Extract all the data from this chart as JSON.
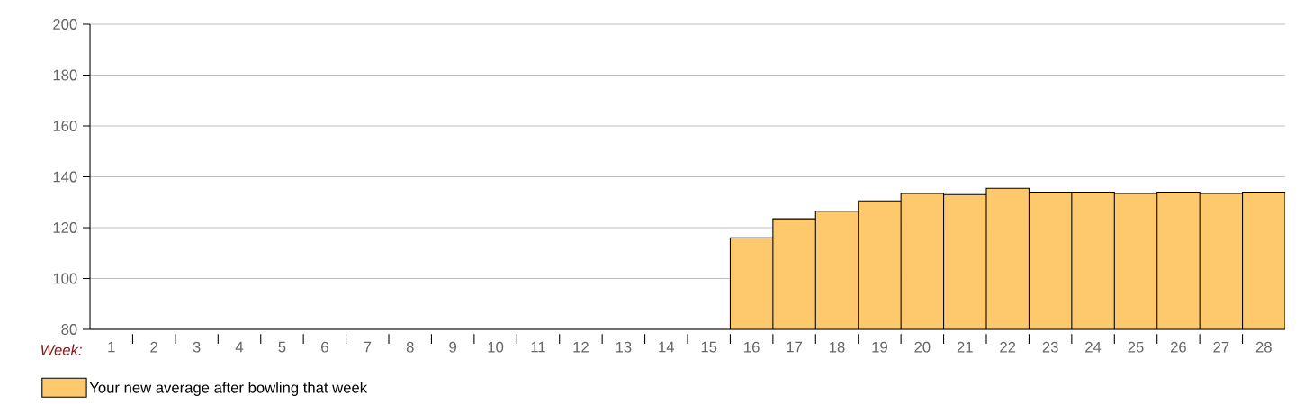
{
  "chart_data": {
    "type": "bar",
    "xlabel": "Week:",
    "categories": [
      "1",
      "2",
      "3",
      "4",
      "5",
      "6",
      "7",
      "8",
      "9",
      "10",
      "11",
      "12",
      "13",
      "14",
      "15",
      "16",
      "17",
      "18",
      "19",
      "20",
      "21",
      "22",
      "23",
      "24",
      "25",
      "26",
      "27",
      "28"
    ],
    "series": [
      {
        "name": "Your new average after bowling that week",
        "color": "#fec96c",
        "values": [
          null,
          null,
          null,
          null,
          null,
          null,
          null,
          null,
          null,
          null,
          null,
          null,
          null,
          null,
          null,
          116,
          123.5,
          126.5,
          130.5,
          133.5,
          133,
          135.5,
          134,
          134,
          133.5,
          134,
          133.5,
          134
        ]
      }
    ],
    "ylim": [
      80,
      200
    ],
    "yticks": [
      80,
      100,
      120,
      140,
      160,
      180,
      200
    ],
    "grid": "y",
    "legend": "bottom left"
  }
}
